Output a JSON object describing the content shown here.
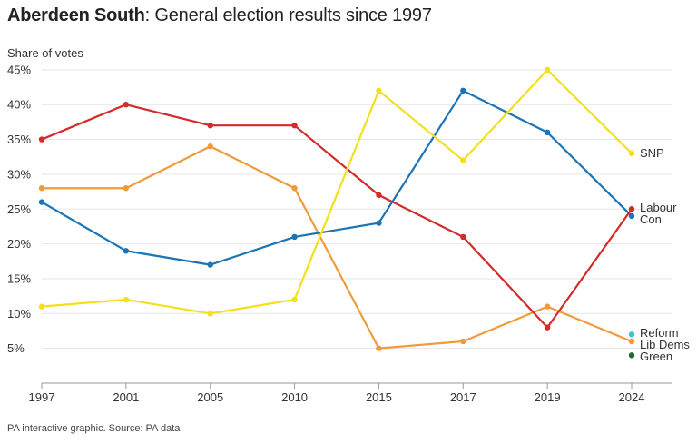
{
  "title": {
    "bold": "Aberdeen South",
    "rest": ": General election results since 1997"
  },
  "footer": "PA interactive graphic. Source: PA data",
  "chart_data": {
    "type": "line",
    "title": "Aberdeen South: General election results since 1997",
    "ylabel": "Share of votes",
    "xlabel": "",
    "x": [
      "1997",
      "2001",
      "2005",
      "2010",
      "2015",
      "2017",
      "2019",
      "2024"
    ],
    "y_ticks": [
      "5%",
      "10%",
      "15%",
      "20%",
      "25%",
      "30%",
      "35%",
      "40%",
      "45%"
    ],
    "ylim": [
      0,
      45
    ],
    "grid": true,
    "legend": "direct labels at right",
    "series": [
      {
        "name": "SNP",
        "color": "#f2e01b",
        "values": [
          11,
          12,
          10,
          12,
          42,
          32,
          45,
          33
        ]
      },
      {
        "name": "Labour",
        "color": "#d42a2a",
        "values": [
          35,
          40,
          37,
          37,
          27,
          21,
          8,
          25
        ]
      },
      {
        "name": "Con",
        "color": "#1a74b5",
        "values": [
          26,
          19,
          17,
          21,
          23,
          42,
          36,
          24
        ]
      },
      {
        "name": "Lib Dems",
        "color": "#f09a3a",
        "values": [
          28,
          28,
          34,
          28,
          5,
          6,
          11,
          6
        ]
      },
      {
        "name": "Reform",
        "color": "#3fc3c8",
        "values": [
          null,
          null,
          null,
          null,
          null,
          null,
          null,
          7
        ]
      },
      {
        "name": "Green",
        "color": "#1f6b32",
        "values": [
          null,
          null,
          null,
          null,
          null,
          null,
          null,
          4
        ]
      }
    ]
  }
}
